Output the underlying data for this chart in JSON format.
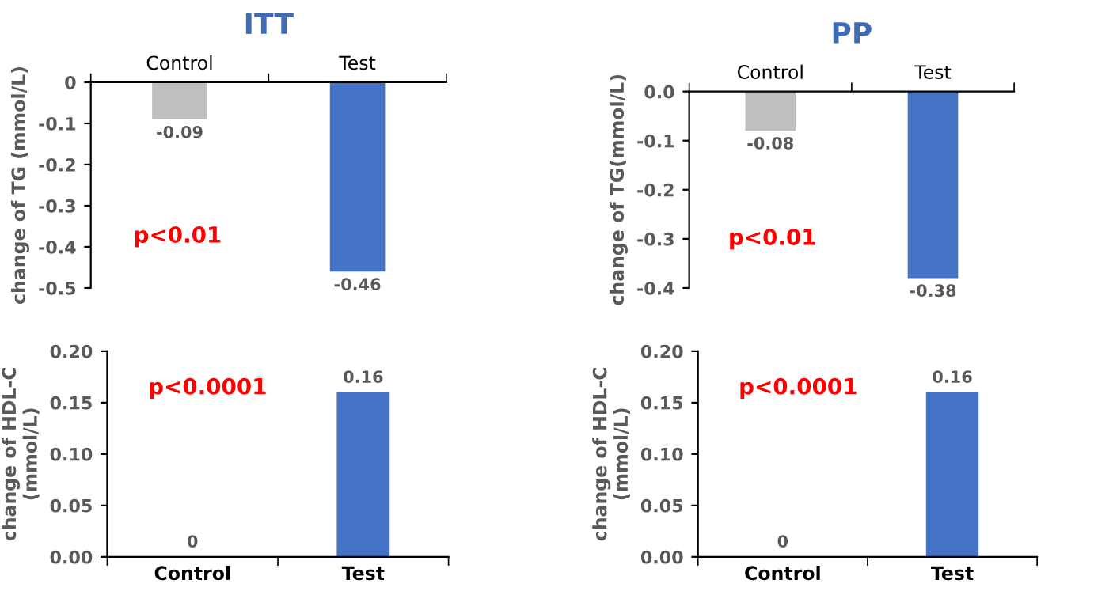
{
  "chart_data": [
    {
      "type": "bar",
      "title": "ITT",
      "ylabel": "change of TG (mmol/L)",
      "categories": [
        "Control",
        "Test"
      ],
      "values": [
        -0.09,
        -0.46
      ],
      "colors": [
        "#bfbfbf",
        "#4472c4"
      ],
      "ylim": [
        -0.5,
        0
      ],
      "yticks": [
        0,
        -0.1,
        -0.2,
        -0.3,
        -0.4,
        -0.5
      ],
      "data_labels": true,
      "grid": false,
      "annotations": [
        "p<0.01"
      ]
    },
    {
      "type": "bar",
      "title": "PP",
      "ylabel": "change of TG(mmol/L)",
      "categories": [
        "Control",
        "Test"
      ],
      "values": [
        -0.08,
        -0.38
      ],
      "colors": [
        "#bfbfbf",
        "#4472c4"
      ],
      "ylim": [
        -0.4,
        0
      ],
      "yticks": [
        {
          "value": 0,
          "label": "0.0"
        },
        -0.1,
        -0.2,
        -0.3,
        -0.4
      ],
      "data_labels": true,
      "grid": false,
      "annotations": [
        "p<0.01"
      ]
    },
    {
      "type": "bar",
      "ylabel": "change of HDL-C\n(mmol/L)",
      "categories": [
        "Control",
        "Test"
      ],
      "values": [
        0,
        0.16
      ],
      "colors": [
        "#bfbfbf",
        "#4472c4"
      ],
      "ylim": [
        0,
        0.2
      ],
      "yticks": [
        {
          "value": 0,
          "label": "0.00"
        },
        {
          "value": 0.05,
          "label": "0.05"
        },
        {
          "value": 0.1,
          "label": "0.10"
        },
        {
          "value": 0.15,
          "label": "0.15"
        },
        {
          "value": 0.2,
          "label": "0.20"
        }
      ],
      "data_labels": true,
      "grid": false,
      "annotations": [
        "p<0.0001"
      ]
    },
    {
      "type": "bar",
      "ylabel": "change of HDL-C\n(mmol/L)",
      "categories": [
        "Control",
        "Test"
      ],
      "values": [
        0,
        0.16
      ],
      "colors": [
        "#bfbfbf",
        "#4472c4"
      ],
      "ylim": [
        0,
        0.2
      ],
      "yticks": [
        {
          "value": 0,
          "label": "0.00"
        },
        {
          "value": 0.05,
          "label": "0.05"
        },
        {
          "value": 0.1,
          "label": "0.10"
        },
        {
          "value": 0.15,
          "label": "0.15"
        },
        {
          "value": 0.2,
          "label": "0.20"
        }
      ],
      "data_labels": true,
      "grid": false,
      "annotations": [
        "p<0.0001"
      ]
    }
  ]
}
